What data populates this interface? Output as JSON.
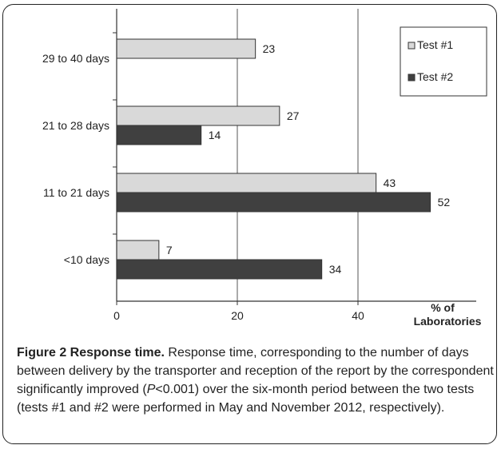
{
  "chart_data": {
    "type": "bar",
    "orientation": "horizontal",
    "categories": [
      "29 to 40 days",
      "21 to 28 days",
      "11 to 21 days",
      "<10 days"
    ],
    "series": [
      {
        "name": "Test #1",
        "values": [
          23,
          27,
          43,
          7
        ],
        "color": "#d9d9d9"
      },
      {
        "name": "Test #2",
        "values": [
          null,
          14,
          52,
          34
        ],
        "color": "#404040"
      }
    ],
    "data_labels": true,
    "xlim": [
      0,
      60
    ],
    "xticks": [
      0,
      20,
      40
    ],
    "xlabel": "% of Laboratories",
    "xlabel_line1": "% of",
    "xlabel_line2": "Laboratories",
    "grid": "vertical",
    "legend_position": "top-right"
  },
  "caption": {
    "label": "Figure 2 Response time.",
    "text_part1": " Response time, corresponding to the number of days between delivery by the transporter and reception of the report by the correspondent significantly improved (",
    "p_symbol": "P",
    "text_part2": "<0.001) over the six-month period between the two tests (tests #1 and #2 were performed in May and November 2012, respectively)."
  }
}
